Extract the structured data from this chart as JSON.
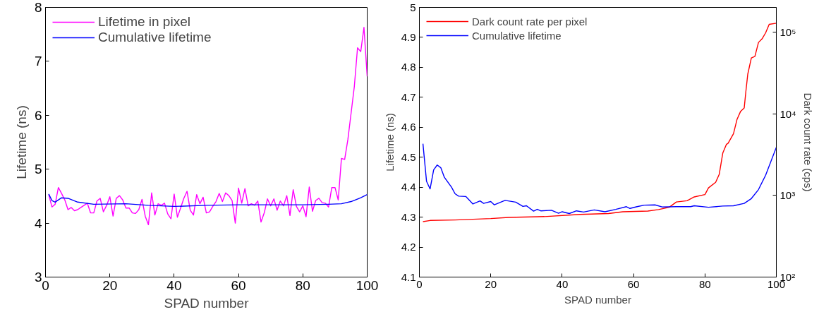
{
  "chart_data": [
    {
      "type": "line",
      "xlabel": "SPAD number",
      "ylabel": "Lifetime (ns)",
      "xlim": [
        0,
        100
      ],
      "ylim": [
        3,
        8
      ],
      "xticks": [
        0,
        20,
        40,
        60,
        80,
        100
      ],
      "yticks": [
        3,
        4,
        5,
        6,
        7,
        8
      ],
      "grid": false,
      "legend": "top left",
      "line_style": "solid",
      "series": [
        {
          "name": "Lifetime in pixel",
          "color": "#ff00ff",
          "x": [
            1,
            2,
            3,
            4,
            5,
            6,
            7,
            8,
            9,
            10,
            11,
            12,
            13,
            14,
            15,
            16,
            17,
            18,
            19,
            20,
            21,
            22,
            23,
            24,
            25,
            26,
            27,
            28,
            29,
            30,
            31,
            32,
            33,
            34,
            35,
            36,
            37,
            38,
            39,
            40,
            41,
            42,
            43,
            44,
            45,
            46,
            47,
            48,
            49,
            50,
            51,
            52,
            53,
            54,
            55,
            56,
            57,
            58,
            59,
            60,
            61,
            62,
            63,
            64,
            65,
            66,
            67,
            68,
            69,
            70,
            71,
            72,
            73,
            74,
            75,
            76,
            77,
            78,
            79,
            80,
            81,
            82,
            83,
            84,
            85,
            86,
            87,
            88,
            89,
            90,
            91,
            92,
            93,
            94,
            95,
            96,
            97,
            98,
            99,
            100
          ],
          "values": [
            4.53,
            4.3,
            4.35,
            4.66,
            4.55,
            4.43,
            4.25,
            4.29,
            4.23,
            4.25,
            4.29,
            4.33,
            4.37,
            4.19,
            4.19,
            4.41,
            4.46,
            4.21,
            4.33,
            4.49,
            4.13,
            4.46,
            4.51,
            4.43,
            4.28,
            4.28,
            4.19,
            4.18,
            4.25,
            4.44,
            4.13,
            3.97,
            4.56,
            4.15,
            4.36,
            4.33,
            4.37,
            4.17,
            4.08,
            4.54,
            4.11,
            4.28,
            4.46,
            4.59,
            4.24,
            4.15,
            4.53,
            4.36,
            4.48,
            4.19,
            4.21,
            4.31,
            4.4,
            4.55,
            4.4,
            4.56,
            4.51,
            4.42,
            4.0,
            4.65,
            4.37,
            4.64,
            4.32,
            4.36,
            4.33,
            4.41,
            4.02,
            4.19,
            4.45,
            4.32,
            4.45,
            4.24,
            4.41,
            4.32,
            4.51,
            4.14,
            4.62,
            4.31,
            4.21,
            4.32,
            4.12,
            4.67,
            4.22,
            4.42,
            4.46,
            4.38,
            4.37,
            4.3,
            4.66,
            4.66,
            4.43,
            5.2,
            5.18,
            5.55,
            6.04,
            6.53,
            7.25,
            7.18,
            7.63,
            6.72
          ]
        },
        {
          "name": "Cumulative lifetime",
          "color": "#0000ff",
          "x": [
            1,
            2,
            3,
            5,
            7,
            10,
            15,
            25,
            32,
            40,
            50,
            60,
            70,
            80,
            88,
            92,
            95,
            98,
            100
          ],
          "values": [
            4.54,
            4.42,
            4.39,
            4.47,
            4.46,
            4.39,
            4.35,
            4.36,
            4.33,
            4.31,
            4.33,
            4.34,
            4.34,
            4.34,
            4.35,
            4.36,
            4.4,
            4.47,
            4.53
          ]
        }
      ]
    },
    {
      "type": "line",
      "xlabel": "SPAD number",
      "ylabel": "Lifetime (ns)",
      "y2label": "Dark count rate (cps)",
      "xlim": [
        0,
        100
      ],
      "ylim": [
        4.1,
        5
      ],
      "y2lim": [
        100,
        200000
      ],
      "log": "y2",
      "xticks": [
        0,
        20,
        40,
        60,
        80,
        100
      ],
      "yticks": [
        4.1,
        4.2,
        4.3,
        4.4,
        4.5,
        4.6,
        4.7,
        4.8,
        4.9,
        5
      ],
      "y2ticks": [
        {
          "value": 100,
          "label": "10²"
        },
        {
          "value": 1000,
          "label": "10³"
        },
        {
          "value": 10000,
          "label": "10⁴"
        },
        {
          "value": 100000,
          "label": "10⁵"
        }
      ],
      "grid": false,
      "legend": "top left",
      "line_style": "solid",
      "series": [
        {
          "name": "Dark count rate per pixel",
          "color": "#ff0000",
          "axis": "y2",
          "x": [
            1,
            3,
            10,
            15,
            20,
            25,
            35,
            45,
            53,
            57,
            64,
            67,
            70,
            72,
            75,
            77,
            80,
            81,
            83,
            84,
            85,
            86,
            86.5,
            88,
            89,
            90,
            91,
            91.5,
            92,
            93,
            94,
            95,
            96,
            97,
            98,
            100
          ],
          "values": [
            477,
            493,
            500,
            510,
            520,
            538,
            550,
            585,
            600,
            630,
            643,
            670,
            716,
            830,
            859,
            957,
            1024,
            1236,
            1445,
            1807,
            3300,
            4200,
            4350,
            5700,
            8550,
            10700,
            11750,
            19300,
            30500,
            48000,
            50300,
            74500,
            82400,
            97700,
            124000,
            128000
          ]
        },
        {
          "name": "Cumulative lifetime",
          "color": "#0000ff",
          "x": [
            1,
            2,
            3,
            4,
            5,
            6,
            7,
            9,
            10,
            11,
            13,
            15,
            17,
            18,
            20,
            21,
            24,
            27,
            29,
            30,
            32,
            33,
            34,
            37,
            39,
            40,
            42,
            44,
            46,
            49,
            52,
            55,
            58,
            59,
            61,
            63,
            66,
            68,
            72,
            76,
            77,
            81,
            85,
            88,
            91,
            93,
            95,
            97,
            100
          ],
          "values": [
            4.545,
            4.42,
            4.394,
            4.458,
            4.474,
            4.465,
            4.433,
            4.4,
            4.378,
            4.37,
            4.369,
            4.344,
            4.354,
            4.346,
            4.352,
            4.341,
            4.356,
            4.35,
            4.336,
            4.338,
            4.32,
            4.326,
            4.321,
            4.323,
            4.313,
            4.318,
            4.312,
            4.321,
            4.317,
            4.324,
            4.318,
            4.326,
            4.335,
            4.329,
            4.335,
            4.34,
            4.341,
            4.334,
            4.335,
            4.335,
            4.338,
            4.333,
            4.337,
            4.338,
            4.346,
            4.362,
            4.392,
            4.44,
            4.533
          ]
        }
      ]
    }
  ]
}
